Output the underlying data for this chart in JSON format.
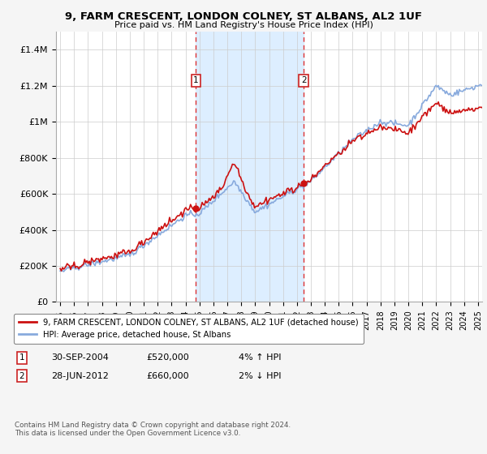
{
  "title": "9, FARM CRESCENT, LONDON COLNEY, ST ALBANS, AL2 1UF",
  "subtitle": "Price paid vs. HM Land Registry's House Price Index (HPI)",
  "red_label": "9, FARM CRESCENT, LONDON COLNEY, ST ALBANS, AL2 1UF (detached house)",
  "blue_label": "HPI: Average price, detached house, St Albans",
  "annotation1": {
    "num": "1",
    "date": "30-SEP-2004",
    "price": "£520,000",
    "pct": "4% ↑ HPI"
  },
  "annotation2": {
    "num": "2",
    "date": "28-JUN-2012",
    "price": "£660,000",
    "pct": "2% ↓ HPI"
  },
  "footnote": "Contains HM Land Registry data © Crown copyright and database right 2024.\nThis data is licensed under the Open Government Licence v3.0.",
  "ylim": [
    0,
    1500000
  ],
  "yticks": [
    0,
    200000,
    400000,
    600000,
    800000,
    1000000,
    1200000,
    1400000
  ],
  "ytick_labels": [
    "£0",
    "£200K",
    "£400K",
    "£600K",
    "£800K",
    "£1M",
    "£1.2M",
    "£1.4M"
  ],
  "fig_bg": "#f0f0f0",
  "plot_bg": "#ffffff",
  "purchase1_x": 2004.75,
  "purchase1_y": 520000,
  "purchase2_x": 2012.5,
  "purchase2_y": 660000,
  "shade_color": "#ddeeff",
  "line_red": "#cc1111",
  "line_blue": "#88aadd",
  "xlim_left": 1994.7,
  "xlim_right": 2025.3
}
